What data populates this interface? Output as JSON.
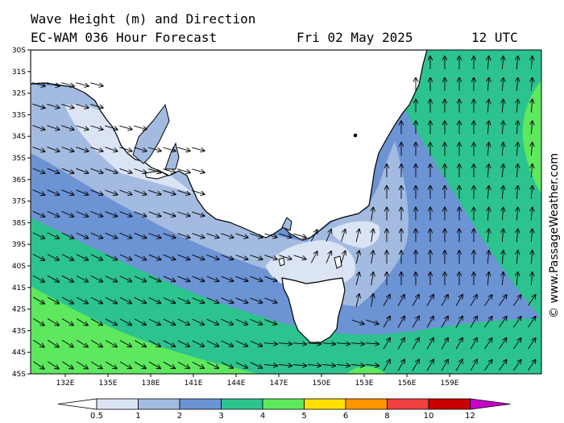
{
  "header": {
    "title": "Wave Height (m) and Direction",
    "model": "EC-WAM 036 Hour Forecast",
    "date": "Fri 02 May 2025",
    "time": "12 UTC"
  },
  "credit": "© www.PassageWeather.com",
  "latitude_labels": [
    "30S",
    "31S",
    "32S",
    "33S",
    "34S",
    "35S",
    "36S",
    "37S",
    "38S",
    "39S",
    "40S",
    "41S",
    "42S",
    "43S",
    "44S",
    "45S"
  ],
  "longitude_labels": [
    "132E",
    "135E",
    "138E",
    "141E",
    "144E",
    "147E",
    "150E",
    "153E",
    "156E",
    "159E"
  ],
  "legend": {
    "labels": [
      "0.5",
      "1",
      "2",
      "3",
      "4",
      "5",
      "6",
      "8",
      "10",
      "12"
    ],
    "colors": [
      "#dbe4f4",
      "#a3bbe0",
      "#6c93d4",
      "#2dc38e",
      "#5ee85e",
      "#ffe000",
      "#ff9600",
      "#f04040",
      "#c80000",
      "#c800c8"
    ]
  },
  "colors": {
    "land": "#ffffff",
    "band_05_1": "#dbe4f4",
    "band_1_2": "#a3bbe0",
    "band_2_3": "#6c93d4",
    "band_3_4": "#2dc38e",
    "band_4_5": "#5ee85e"
  }
}
